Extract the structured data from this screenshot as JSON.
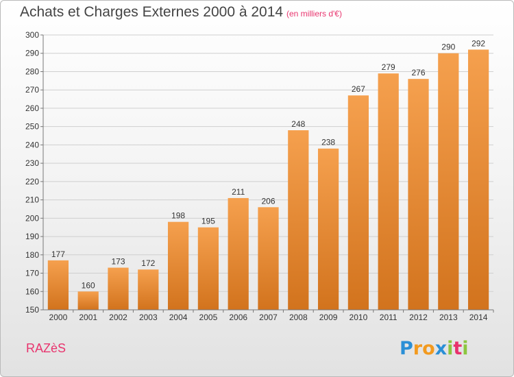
{
  "title": "Achats et Charges Externes 2000 à 2014",
  "subtitle": "(en milliers d'€)",
  "commune": "RAZèS",
  "logo_text": "Proxiti",
  "colors": {
    "bar_light": "#f5a04e",
    "bar_dark": "#d2731d",
    "grid": "#cfcfcf",
    "axis": "#777777",
    "accent": "#e8336d"
  },
  "chart_data": {
    "type": "bar",
    "title": "Achats et Charges Externes 2000 à 2014",
    "subtitle": "(en milliers d'€)",
    "categories": [
      "2000",
      "2001",
      "2002",
      "2003",
      "2004",
      "2005",
      "2006",
      "2007",
      "2008",
      "2009",
      "2010",
      "2011",
      "2012",
      "2013",
      "2014"
    ],
    "values": [
      177,
      160,
      173,
      172,
      198,
      195,
      211,
      206,
      248,
      238,
      267,
      279,
      276,
      290,
      292
    ],
    "ylim": [
      150,
      300
    ],
    "yticks": [
      150,
      160,
      170,
      180,
      190,
      200,
      210,
      220,
      230,
      240,
      250,
      260,
      270,
      280,
      290,
      300
    ],
    "grid": true,
    "data_labels": true
  }
}
